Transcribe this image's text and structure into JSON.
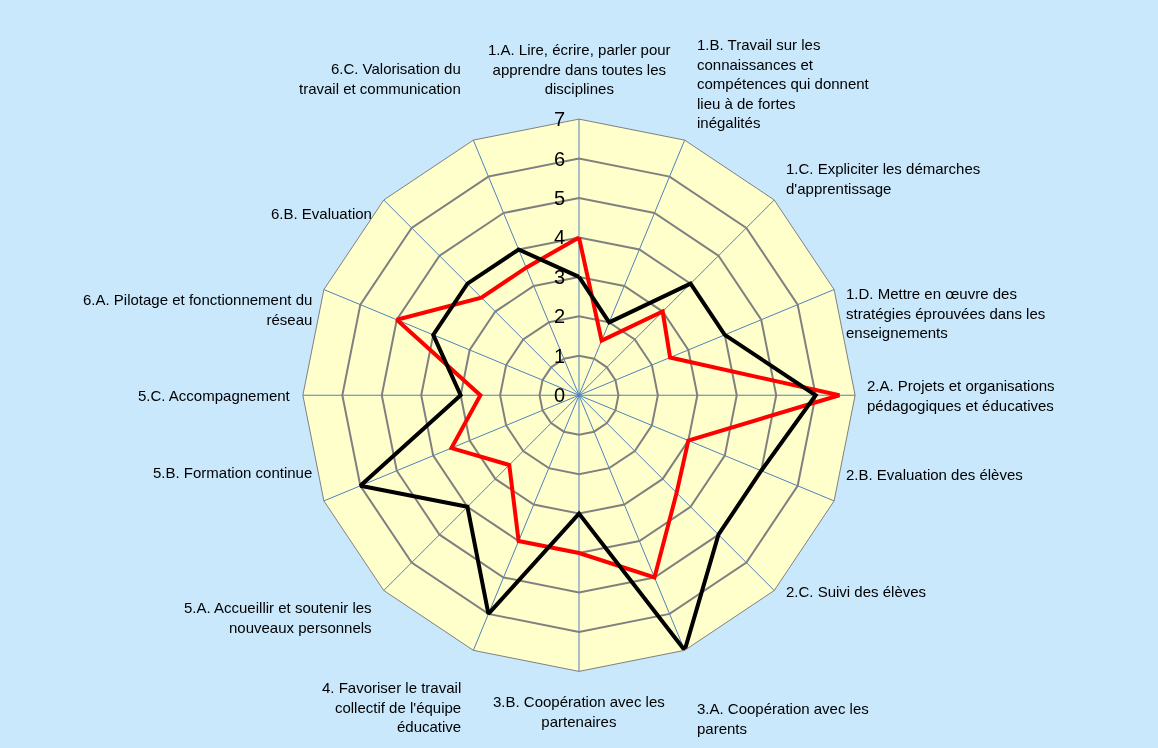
{
  "chart_data": {
    "type": "radar",
    "categories": [
      "1.A. Lire, écrire, parler pour apprendre dans toutes les disciplines",
      "1.B. Travail sur les connaissances et compétences qui donnent lieu à de fortes inégalités",
      "1.C. Expliciter les démarches d'apprentissage",
      "1.D. Mettre en œuvre des stratégies éprouvées dans les enseignements",
      "2.A. Projets et organisations pédagogiques et éducatives",
      "2.B. Evaluation des élèves",
      "2.C. Suivi des élèves",
      "3.A. Coopération avec les parents",
      "3.B. Coopération avec les partenaires",
      "4. Favoriser le travail collectif de l'équipe éducative",
      "5.A. Accueillir et soutenir les nouveaux personnels",
      "5.B. Formation continue",
      "5.C. Accompagnement",
      "6.A. Pilotage et fonctionnement du réseau",
      "6.B. Evaluation",
      "6.C. Valorisation du travail et communication"
    ],
    "series": [
      {
        "color": "#ff0000",
        "values": [
          4,
          1.5,
          3,
          2.5,
          6.6,
          3,
          3.5,
          5,
          4,
          4,
          2.5,
          3.5,
          2.5,
          5,
          3.5,
          3.5
        ]
      },
      {
        "color": "#000000",
        "values": [
          3,
          2,
          4,
          4,
          6,
          5,
          5,
          7,
          3,
          6,
          4,
          6,
          3,
          4,
          4,
          4
        ]
      }
    ],
    "ylim": [
      0,
      7
    ],
    "yticks": [
      0,
      1,
      2,
      3,
      4,
      5,
      6,
      7
    ],
    "grid": true,
    "marker": "none",
    "line_style": "solid"
  }
}
